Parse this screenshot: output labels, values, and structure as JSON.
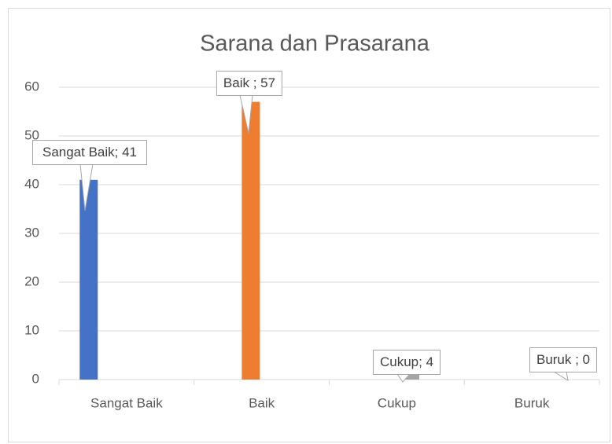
{
  "chart_data": {
    "type": "bar",
    "title": "Sarana dan Prasarana",
    "categories": [
      "Sangat Baik",
      "Baik",
      "Cukup",
      "Buruk"
    ],
    "values": [
      41,
      57,
      4,
      0
    ],
    "value_labels": [
      "Sangat Baik; 41",
      "Baik ; 57",
      "Cukup; 4",
      "Buruk ; 0"
    ],
    "colors": [
      "#4472c4",
      "#ed7d31",
      "#a5a5a5",
      "#ffc000"
    ],
    "ylim": [
      0,
      60
    ],
    "yticks": [
      0,
      10,
      20,
      30,
      40,
      50,
      60
    ],
    "grid": true
  }
}
